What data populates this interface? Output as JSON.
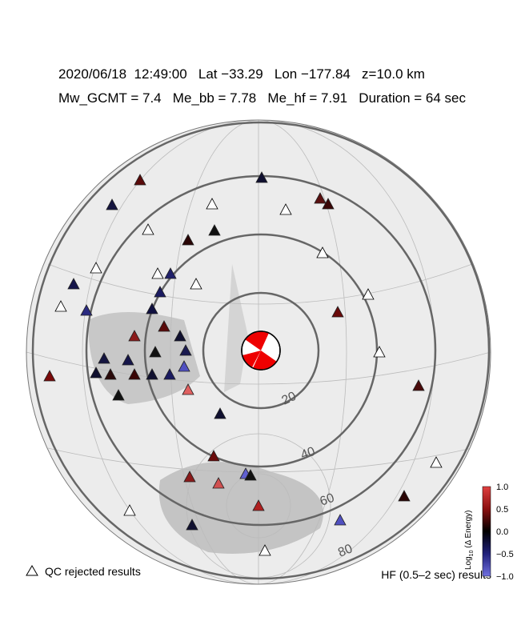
{
  "header": {
    "line1": "2020/06/18  12:49:00   Lat −33.29   Lon −177.84   z=10.0 km",
    "line2": "Mw_GCMT = 7.4   Me_bb = 7.78   Me_hf = 7.91   Duration = 64 sec"
  },
  "rings": [
    "20",
    "40",
    "60",
    "80"
  ],
  "legend": {
    "qc": "QC rejected results",
    "hf": "HF (0.5–2 sec) results"
  },
  "colorbar": {
    "label_base": "Log",
    "label_sub": "10",
    "label_rest": " (Δ Energy)",
    "ticks": [
      "1.0",
      "0.5",
      "0.0",
      "−0.5",
      "−1.0"
    ]
  }
}
